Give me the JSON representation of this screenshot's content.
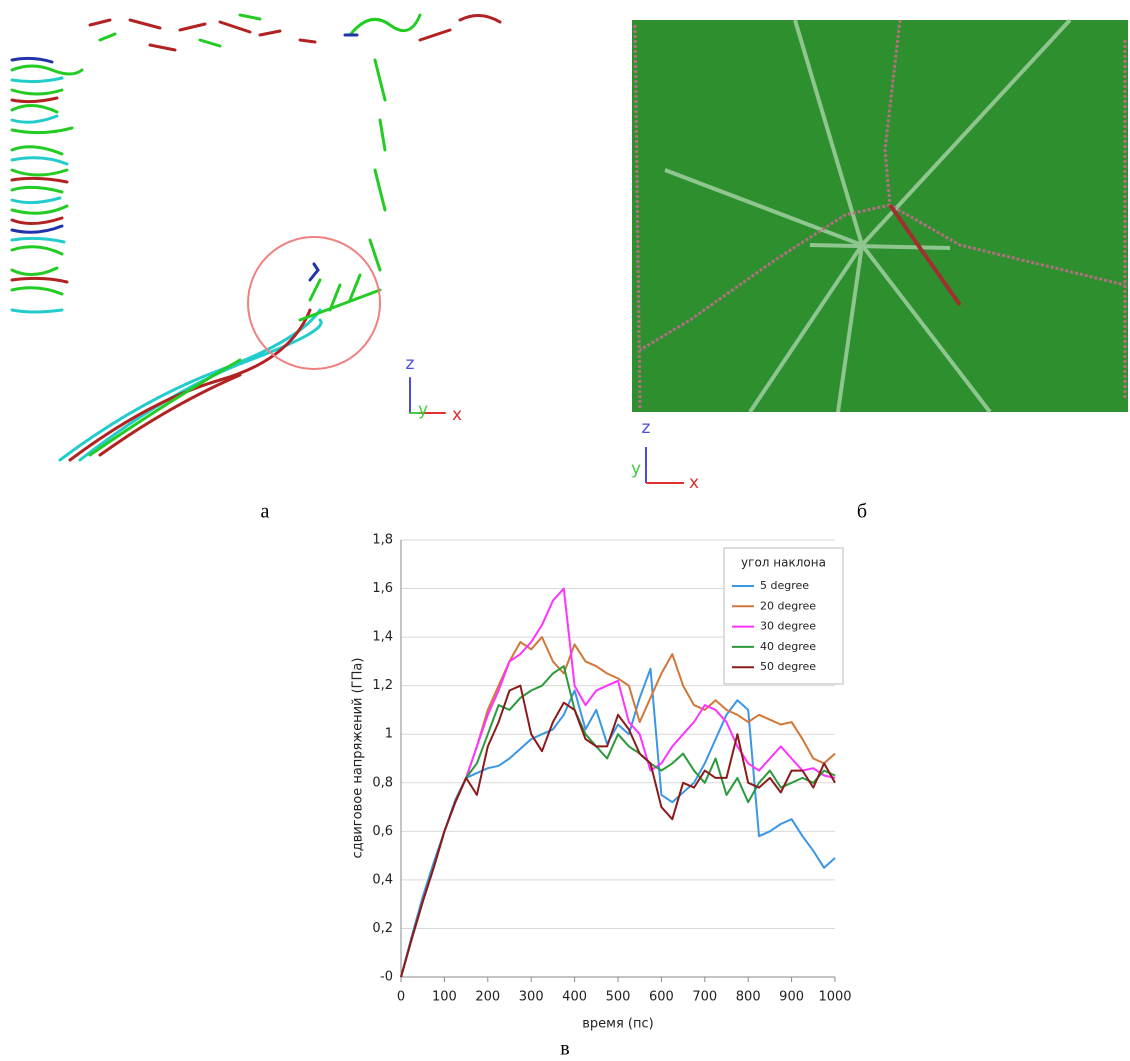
{
  "panel_labels": [
    "а",
    "б",
    "в"
  ],
  "axis_glyphs": [
    [
      "z",
      "y",
      "x"
    ],
    [
      "z",
      "y",
      "x"
    ]
  ],
  "chart_data": {
    "type": "line",
    "x_label": "время (пс)",
    "y_label": "сдвиговое напряжений (ГПа)",
    "legend_title": "угол наклона",
    "legend": "upper right",
    "grid": true,
    "x": [
      0,
      25,
      50,
      75,
      100,
      125,
      150,
      175,
      200,
      225,
      250,
      275,
      300,
      325,
      350,
      375,
      400,
      425,
      450,
      475,
      500,
      525,
      550,
      575,
      600,
      625,
      650,
      675,
      700,
      725,
      750,
      775,
      800,
      825,
      850,
      875,
      900,
      925,
      950,
      975,
      1000
    ],
    "xlim": [
      0,
      1000
    ],
    "xticks": [
      0,
      100,
      200,
      300,
      400,
      500,
      600,
      700,
      800,
      900,
      1000
    ],
    "ylim": [
      0,
      1.8
    ],
    "yticks": [
      {
        "value": 0,
        "label": "-0"
      },
      {
        "value": 0.2,
        "label": "0,2"
      },
      {
        "value": 0.4,
        "label": "0,4"
      },
      {
        "value": 0.6,
        "label": "0,6"
      },
      {
        "value": 0.8,
        "label": "0,8"
      },
      1,
      {
        "value": 1.2,
        "label": "1,2"
      },
      {
        "value": 1.4,
        "label": "1,4"
      },
      {
        "value": 1.6,
        "label": "1,6"
      },
      {
        "value": 1.8,
        "label": "1,8"
      }
    ],
    "series": [
      {
        "name": "5 degree",
        "color": "#3a96e6",
        "values": [
          0,
          0.17,
          0.33,
          0.47,
          0.6,
          0.73,
          0.82,
          0.84,
          0.86,
          0.87,
          0.9,
          0.94,
          0.98,
          1.0,
          1.02,
          1.08,
          1.18,
          1.02,
          1.1,
          0.96,
          1.04,
          1.0,
          1.15,
          1.27,
          0.75,
          0.72,
          0.76,
          0.8,
          0.88,
          0.98,
          1.08,
          1.14,
          1.1,
          0.58,
          0.6,
          0.63,
          0.65,
          0.58,
          0.52,
          0.45,
          0.49
        ]
      },
      {
        "name": "20 degree",
        "color": "#d2773a",
        "values": [
          0,
          0.16,
          0.31,
          0.45,
          0.6,
          0.72,
          0.82,
          0.95,
          1.1,
          1.2,
          1.3,
          1.38,
          1.35,
          1.4,
          1.3,
          1.25,
          1.37,
          1.3,
          1.28,
          1.25,
          1.23,
          1.2,
          1.05,
          1.15,
          1.25,
          1.33,
          1.2,
          1.12,
          1.1,
          1.14,
          1.1,
          1.08,
          1.05,
          1.08,
          1.06,
          1.04,
          1.05,
          0.98,
          0.9,
          0.88,
          0.92
        ]
      },
      {
        "name": "30 degree",
        "color": "#ff33ff",
        "values": [
          0,
          0.16,
          0.31,
          0.45,
          0.6,
          0.72,
          0.82,
          0.95,
          1.08,
          1.18,
          1.3,
          1.33,
          1.38,
          1.45,
          1.55,
          1.6,
          1.2,
          1.12,
          1.18,
          1.2,
          1.22,
          1.05,
          1.0,
          0.85,
          0.88,
          0.95,
          1.0,
          1.05,
          1.12,
          1.1,
          1.05,
          0.95,
          0.88,
          0.85,
          0.9,
          0.95,
          0.9,
          0.85,
          0.86,
          0.83,
          0.82
        ]
      },
      {
        "name": "40 degree",
        "color": "#2a9a3c",
        "values": [
          0,
          0.16,
          0.31,
          0.45,
          0.6,
          0.72,
          0.82,
          0.88,
          1.0,
          1.12,
          1.1,
          1.15,
          1.18,
          1.2,
          1.25,
          1.28,
          1.1,
          1.0,
          0.95,
          0.9,
          1.0,
          0.95,
          0.92,
          0.88,
          0.85,
          0.88,
          0.92,
          0.85,
          0.8,
          0.9,
          0.75,
          0.82,
          0.72,
          0.8,
          0.85,
          0.78,
          0.8,
          0.82,
          0.8,
          0.85,
          0.83
        ]
      },
      {
        "name": "50 degree",
        "color": "#8b1a1a",
        "values": [
          0,
          0.16,
          0.31,
          0.45,
          0.6,
          0.72,
          0.82,
          0.75,
          0.95,
          1.05,
          1.18,
          1.2,
          1.0,
          0.93,
          1.05,
          1.13,
          1.1,
          0.98,
          0.95,
          0.95,
          1.08,
          1.02,
          0.92,
          0.88,
          0.7,
          0.65,
          0.8,
          0.78,
          0.85,
          0.82,
          0.82,
          1.0,
          0.8,
          0.78,
          0.82,
          0.76,
          0.85,
          0.85,
          0.78,
          0.88,
          0.8
        ]
      }
    ]
  }
}
